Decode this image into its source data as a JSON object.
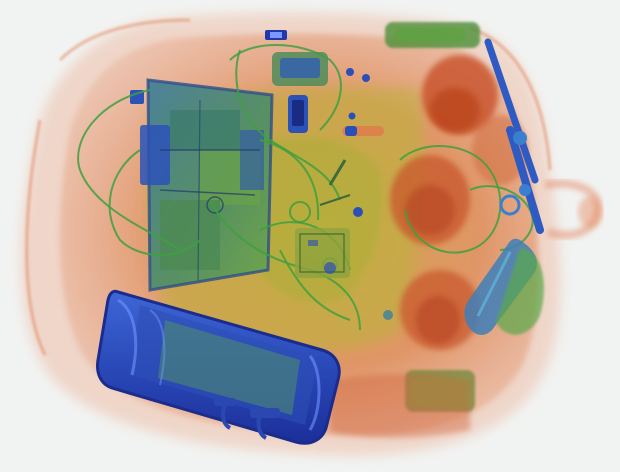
{
  "scan": {
    "palette": {
      "background": "#f1f3f2",
      "organic": "#d9683f",
      "organic_dense": "#c34a22",
      "mixed": "#a9b43a",
      "mixed_green": "#5f9a48",
      "inorganic": "#2f58c8",
      "inorganic_dark": "#1c2f9a",
      "wire": "#3e9a3e"
    },
    "icons": [
      "xray-scan-image"
    ]
  }
}
